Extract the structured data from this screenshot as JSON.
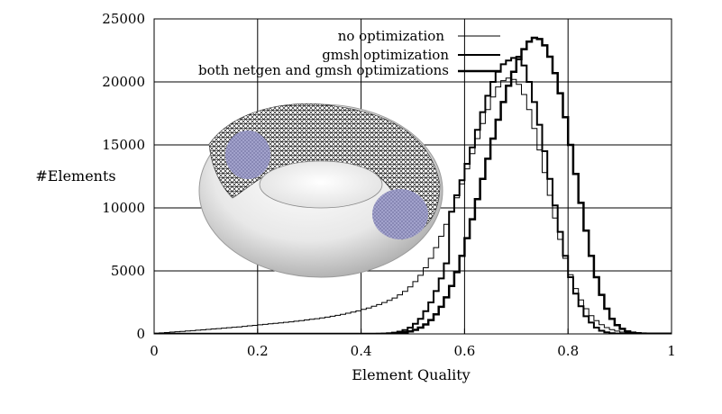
{
  "chart_data": {
    "type": "line",
    "title": "",
    "xlabel": "Element Quality",
    "ylabel": "#Elements",
    "xlim": [
      0,
      1
    ],
    "ylim": [
      0,
      25000
    ],
    "grid": true,
    "legend_position": "top-right",
    "x_ticks": [
      "0",
      "0.2",
      "0.4",
      "0.6",
      "0.8",
      "1"
    ],
    "y_ticks": [
      "0",
      "5000",
      "10000",
      "15000",
      "20000",
      "25000"
    ],
    "inset": "torus mesh image with two highlighted optimized regions",
    "x": [
      0.0,
      0.01,
      0.02,
      0.03,
      0.04,
      0.05,
      0.06,
      0.07,
      0.08,
      0.09,
      0.1,
      0.11,
      0.12,
      0.13,
      0.14,
      0.15,
      0.16,
      0.17,
      0.18,
      0.19,
      0.2,
      0.21,
      0.22,
      0.23,
      0.24,
      0.25,
      0.26,
      0.27,
      0.28,
      0.29,
      0.3,
      0.31,
      0.32,
      0.33,
      0.34,
      0.35,
      0.36,
      0.37,
      0.38,
      0.39,
      0.4,
      0.41,
      0.42,
      0.43,
      0.44,
      0.45,
      0.46,
      0.47,
      0.48,
      0.49,
      0.5,
      0.51,
      0.52,
      0.53,
      0.54,
      0.55,
      0.56,
      0.57,
      0.58,
      0.59,
      0.6,
      0.61,
      0.62,
      0.63,
      0.64,
      0.65,
      0.66,
      0.67,
      0.68,
      0.69,
      0.7,
      0.71,
      0.72,
      0.73,
      0.74,
      0.75,
      0.76,
      0.77,
      0.78,
      0.79,
      0.8,
      0.81,
      0.82,
      0.83,
      0.84,
      0.85,
      0.86,
      0.87,
      0.88,
      0.89,
      0.9,
      0.91,
      0.92,
      0.93,
      0.94,
      0.95,
      0.96,
      0.97,
      0.98,
      0.99
    ],
    "series": [
      {
        "name": "no optimization",
        "stroke_width": 1,
        "values": [
          50,
          80,
          110,
          140,
          170,
          200,
          230,
          260,
          290,
          320,
          360,
          390,
          420,
          460,
          490,
          530,
          560,
          600,
          640,
          680,
          720,
          760,
          800,
          840,
          880,
          920,
          960,
          1010,
          1060,
          1110,
          1160,
          1210,
          1270,
          1330,
          1400,
          1470,
          1550,
          1640,
          1730,
          1830,
          1940,
          2060,
          2190,
          2330,
          2490,
          2660,
          2850,
          3100,
          3380,
          3730,
          4150,
          4650,
          5250,
          6000,
          6850,
          7750,
          8700,
          9700,
          10800,
          11900,
          13100,
          14300,
          15500,
          16700,
          17800,
          18800,
          19600,
          20100,
          20300,
          20200,
          19800,
          19000,
          17800,
          16300,
          14600,
          12800,
          11000,
          9200,
          7500,
          6000,
          4700,
          3600,
          2700,
          2000,
          1450,
          1050,
          730,
          500,
          340,
          220,
          140,
          90,
          60,
          40,
          30,
          30,
          20,
          20,
          20,
          20
        ]
      },
      {
        "name": "gmsh optimization",
        "stroke_width": 2,
        "values": [
          0,
          0,
          0,
          0,
          0,
          0,
          0,
          0,
          0,
          0,
          0,
          0,
          0,
          0,
          0,
          0,
          0,
          0,
          0,
          0,
          0,
          0,
          0,
          0,
          0,
          0,
          0,
          0,
          0,
          0,
          0,
          0,
          0,
          0,
          0,
          0,
          0,
          0,
          0,
          0,
          0,
          0,
          0,
          10,
          20,
          50,
          100,
          180,
          300,
          500,
          800,
          1200,
          1800,
          2500,
          3400,
          4400,
          5600,
          9700,
          11000,
          12200,
          13500,
          14800,
          16200,
          17600,
          18900,
          20000,
          20800,
          21400,
          21700,
          21900,
          22000,
          21300,
          20000,
          18400,
          16600,
          14500,
          12300,
          10200,
          8100,
          6200,
          4500,
          3200,
          2200,
          1400,
          900,
          500,
          250,
          120,
          60,
          30,
          20,
          20,
          20,
          20,
          20,
          20,
          20,
          20,
          20,
          20
        ]
      },
      {
        "name": "both netgen and gmsh optimizations",
        "stroke_width": 2.5,
        "values": [
          0,
          0,
          0,
          0,
          0,
          0,
          0,
          0,
          0,
          0,
          0,
          0,
          0,
          0,
          0,
          0,
          0,
          0,
          0,
          0,
          0,
          0,
          0,
          0,
          0,
          0,
          0,
          0,
          0,
          0,
          0,
          0,
          0,
          0,
          0,
          0,
          0,
          0,
          0,
          0,
          0,
          0,
          0,
          0,
          10,
          20,
          40,
          70,
          120,
          200,
          320,
          500,
          750,
          1100,
          1550,
          2150,
          2900,
          3800,
          4900,
          6200,
          7600,
          9100,
          10700,
          12300,
          13900,
          15500,
          17000,
          18400,
          19700,
          20800,
          21800,
          22600,
          23200,
          23500,
          23400,
          22900,
          22000,
          20700,
          19100,
          17200,
          15000,
          12700,
          10400,
          8200,
          6200,
          4500,
          3100,
          2000,
          1200,
          700,
          400,
          200,
          100,
          50,
          30,
          20,
          20,
          20,
          20,
          20
        ]
      }
    ]
  }
}
